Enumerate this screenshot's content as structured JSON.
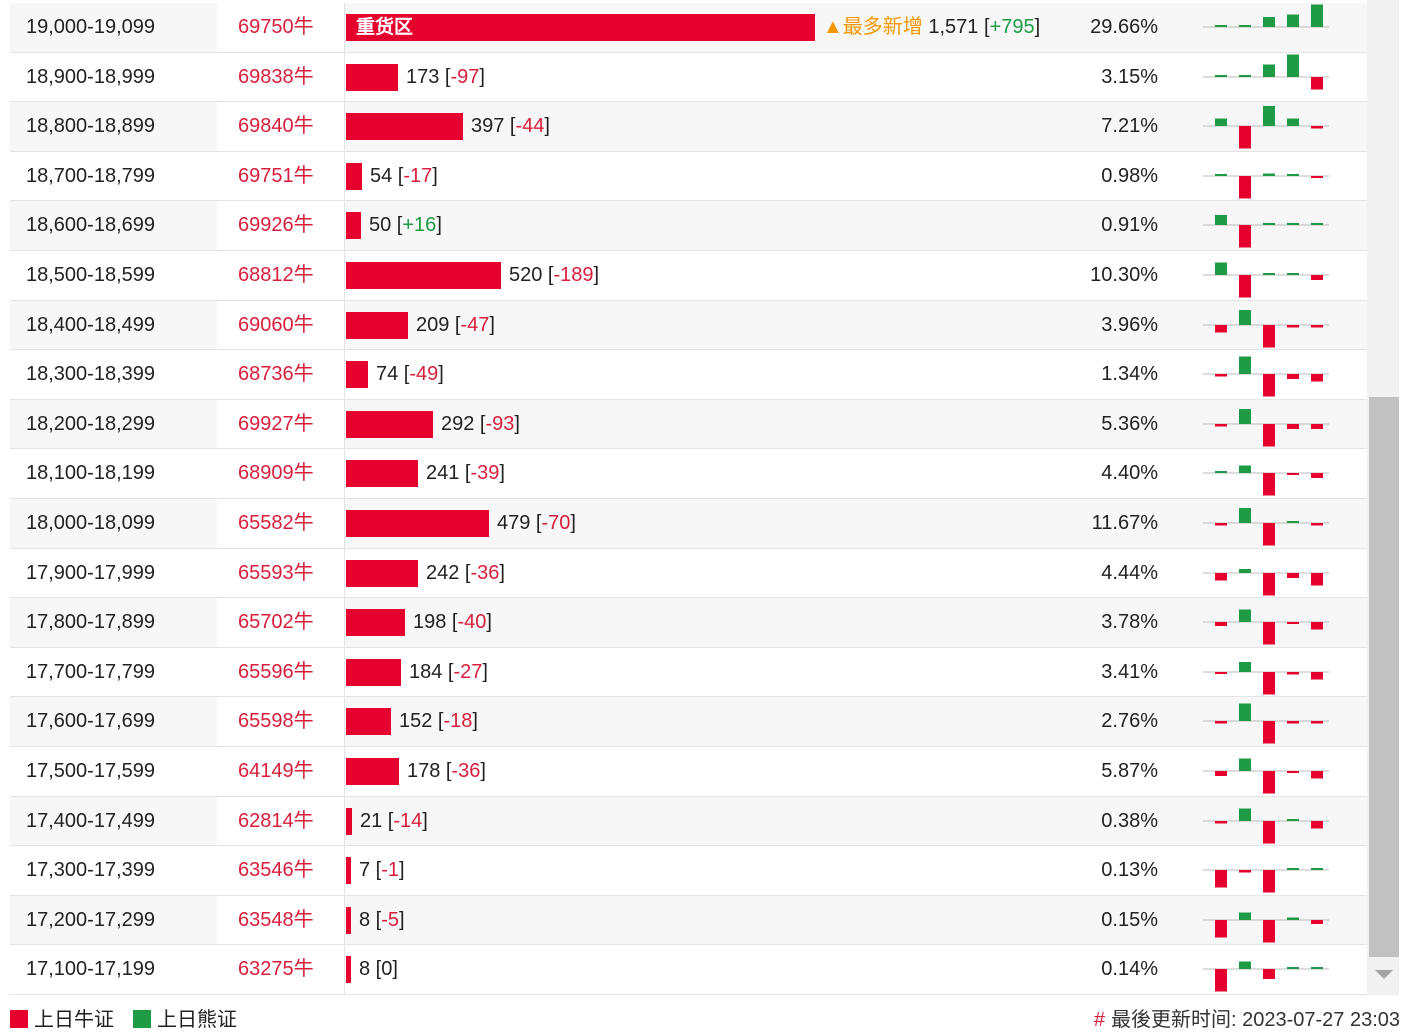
{
  "colors": {
    "bull": "#e6002d",
    "bear": "#1f9a45",
    "accent": "#f39800"
  },
  "legend": {
    "bull_label": "上日牛证",
    "bear_label": "上日熊证"
  },
  "update": {
    "hash": "#",
    "label": "最後更新时间: 2023-07-27 23:03"
  },
  "heavy_label": "重货区",
  "top_tag": "▲最多新增",
  "rows": [
    {
      "range": "19,000-19,099",
      "code": "69750牛",
      "value": "1,571",
      "change": "+795",
      "pct": "29.66%",
      "bar": 100,
      "spark": [
        0,
        0,
        20,
        25,
        45
      ]
    },
    {
      "range": "18,900-18,999",
      "code": "69838牛",
      "value": "173",
      "change": "-97",
      "pct": "3.15%",
      "bar": 11,
      "spark": [
        0,
        0,
        25,
        45,
        -25
      ]
    },
    {
      "range": "18,800-18,899",
      "code": "69840牛",
      "value": "397",
      "change": "-44",
      "pct": "7.21%",
      "bar": 25,
      "spark": [
        15,
        -45,
        40,
        15,
        -5
      ]
    },
    {
      "range": "18,700-18,799",
      "code": "69751牛",
      "value": "54",
      "change": "-17",
      "pct": "0.98%",
      "bar": 3.4,
      "spark": [
        2,
        -45,
        5,
        2,
        -3
      ]
    },
    {
      "range": "18,600-18,699",
      "code": "69926牛",
      "value": "50",
      "change": "+16",
      "pct": "0.91%",
      "bar": 3.2,
      "spark": [
        20,
        -45,
        3,
        3,
        3
      ]
    },
    {
      "range": "18,500-18,599",
      "code": "68812牛",
      "value": "520",
      "change": "-189",
      "pct": "10.30%",
      "bar": 33,
      "spark": [
        25,
        -45,
        2,
        2,
        -10
      ]
    },
    {
      "range": "18,400-18,499",
      "code": "69060牛",
      "value": "209",
      "change": "-47",
      "pct": "3.96%",
      "bar": 13.3,
      "spark": [
        -15,
        30,
        -45,
        -5,
        -5
      ]
    },
    {
      "range": "18,300-18,399",
      "code": "68736牛",
      "value": "74",
      "change": "-49",
      "pct": "1.34%",
      "bar": 4.7,
      "spark": [
        -5,
        35,
        -45,
        -10,
        -15
      ]
    },
    {
      "range": "18,200-18,299",
      "code": "69927牛",
      "value": "292",
      "change": "-93",
      "pct": "5.36%",
      "bar": 18.6,
      "spark": [
        -5,
        30,
        -45,
        -10,
        -10
      ]
    },
    {
      "range": "18,100-18,199",
      "code": "68909牛",
      "value": "241",
      "change": "-39",
      "pct": "4.40%",
      "bar": 15.3,
      "spark": [
        0,
        15,
        -45,
        -3,
        -10
      ]
    },
    {
      "range": "18,000-18,099",
      "code": "65582牛",
      "value": "479",
      "change": "-70",
      "pct": "11.67%",
      "bar": 30.5,
      "spark": [
        -5,
        30,
        -45,
        2,
        -5
      ]
    },
    {
      "range": "17,900-17,999",
      "code": "65593牛",
      "value": "242",
      "change": "-36",
      "pct": "4.44%",
      "bar": 15.4,
      "spark": [
        -15,
        8,
        -45,
        -10,
        -25
      ]
    },
    {
      "range": "17,800-17,899",
      "code": "65702牛",
      "value": "198",
      "change": "-40",
      "pct": "3.78%",
      "bar": 12.6,
      "spark": [
        -8,
        25,
        -45,
        -3,
        -15
      ]
    },
    {
      "range": "17,700-17,799",
      "code": "65596牛",
      "value": "184",
      "change": "-27",
      "pct": "3.41%",
      "bar": 11.7,
      "spark": [
        -3,
        20,
        -45,
        -5,
        -15
      ]
    },
    {
      "range": "17,600-17,699",
      "code": "65598牛",
      "value": "152",
      "change": "-18",
      "pct": "2.76%",
      "bar": 9.7,
      "spark": [
        -5,
        35,
        -45,
        -5,
        -5
      ]
    },
    {
      "range": "17,500-17,599",
      "code": "64149牛",
      "value": "178",
      "change": "-36",
      "pct": "5.87%",
      "bar": 11.3,
      "spark": [
        -10,
        25,
        -45,
        -3,
        -15
      ]
    },
    {
      "range": "17,400-17,499",
      "code": "62814牛",
      "value": "21",
      "change": "-14",
      "pct": "0.38%",
      "bar": 1.3,
      "spark": [
        -5,
        25,
        -45,
        0,
        -15
      ]
    },
    {
      "range": "17,300-17,399",
      "code": "63546牛",
      "value": "7",
      "change": "-1",
      "pct": "0.13%",
      "bar": 0.5,
      "spark": [
        -35,
        -5,
        -45,
        0,
        0
      ]
    },
    {
      "range": "17,200-17,299",
      "code": "63548牛",
      "value": "8",
      "change": "-5",
      "pct": "0.15%",
      "bar": 0.5,
      "spark": [
        -35,
        15,
        -45,
        5,
        -8
      ]
    },
    {
      "range": "17,100-17,199",
      "code": "63275牛",
      "value": "8",
      "change": "0",
      "pct": "0.14%",
      "bar": 0.5,
      "spark": [
        -45,
        15,
        -20,
        0,
        0
      ]
    }
  ]
}
